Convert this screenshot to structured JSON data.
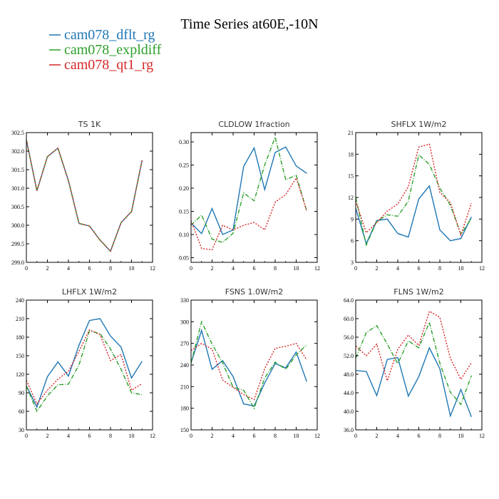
{
  "figure": {
    "title": "Time Series at60E,-10N",
    "legend": [
      {
        "label": "cam078_dflt_rg",
        "color": "#1f77b4",
        "dash": "solid"
      },
      {
        "label": "cam078_expldiff",
        "color": "#2ca02c",
        "dash": "dashdot"
      },
      {
        "label": "cam078_qt1_rg",
        "color": "#d62728",
        "dash": "dotted"
      }
    ]
  },
  "chart_data": [
    {
      "type": "line",
      "title": "TS   1K",
      "x": [
        0,
        1,
        2,
        3,
        4,
        5,
        6,
        7,
        8,
        9,
        10,
        11
      ],
      "xlim": [
        0,
        12
      ],
      "xticks": [
        0,
        2,
        4,
        6,
        8,
        10,
        12
      ],
      "ylim": [
        299.0,
        302.5
      ],
      "yticks": [
        "299.0",
        "299.5",
        "300.0",
        "300.5",
        "301.0",
        "301.5",
        "302.0",
        "302.5"
      ],
      "series": [
        {
          "label": "cam078_dflt_rg",
          "color": "#1f77b4",
          "dash": "solid",
          "values": [
            302.3,
            300.93,
            301.85,
            302.08,
            301.2,
            300.05,
            299.98,
            299.6,
            299.3,
            300.07,
            300.37,
            301.75
          ]
        },
        {
          "label": "cam078_expldiff",
          "color": "#2ca02c",
          "dash": "dashdot",
          "values": [
            302.3,
            300.93,
            301.85,
            302.08,
            301.2,
            300.05,
            299.98,
            299.6,
            299.3,
            300.07,
            300.37,
            301.75
          ]
        },
        {
          "label": "cam078_qt1_rg",
          "color": "#d62728",
          "dash": "dotted",
          "values": [
            302.3,
            300.93,
            301.85,
            302.08,
            301.2,
            300.05,
            299.98,
            299.6,
            299.3,
            300.07,
            300.37,
            301.75
          ]
        }
      ]
    },
    {
      "type": "line",
      "title": "CLDLOW   1fraction",
      "x": [
        0,
        1,
        2,
        3,
        4,
        5,
        6,
        7,
        8,
        9,
        10,
        11
      ],
      "xlim": [
        0,
        12
      ],
      "xticks": [
        0,
        2,
        4,
        6,
        8,
        10,
        12
      ],
      "ylim": [
        0.04,
        0.32
      ],
      "yticks": [
        "0.05",
        "0.10",
        "0.15",
        "0.20",
        "0.25",
        "0.30"
      ],
      "series": [
        {
          "label": "cam078_dflt_rg",
          "color": "#1f77b4",
          "dash": "solid",
          "values": [
            0.125,
            0.102,
            0.156,
            0.1,
            0.11,
            0.247,
            0.287,
            0.197,
            0.277,
            0.289,
            0.248,
            0.232
          ]
        },
        {
          "label": "cam078_expldiff",
          "color": "#2ca02c",
          "dash": "dashdot",
          "values": [
            0.12,
            0.142,
            0.09,
            0.083,
            0.103,
            0.19,
            0.173,
            0.25,
            0.31,
            0.218,
            0.228,
            0.151
          ]
        },
        {
          "label": "cam078_qt1_rg",
          "color": "#d62728",
          "dash": "dotted",
          "values": [
            0.13,
            0.07,
            0.067,
            0.12,
            0.11,
            0.12,
            0.126,
            0.11,
            0.17,
            0.186,
            0.222,
            0.151
          ]
        }
      ]
    },
    {
      "type": "line",
      "title": "SHFLX   1W/m2",
      "x": [
        0,
        1,
        2,
        3,
        4,
        5,
        6,
        7,
        8,
        9,
        10,
        11
      ],
      "xlim": [
        0,
        12
      ],
      "xticks": [
        0,
        2,
        4,
        6,
        8,
        10,
        12
      ],
      "ylim": [
        3,
        21
      ],
      "yticks": [
        "3",
        "6",
        "9",
        "12",
        "15",
        "18",
        "21"
      ],
      "series": [
        {
          "label": "cam078_dflt_rg",
          "color": "#1f77b4",
          "dash": "solid",
          "values": [
            10.5,
            5.6,
            8.8,
            9.0,
            7.0,
            6.5,
            11.8,
            13.6,
            7.5,
            6.0,
            6.3,
            9.3
          ]
        },
        {
          "label": "cam078_expldiff",
          "color": "#2ca02c",
          "dash": "dashdot",
          "values": [
            12.0,
            5.4,
            8.7,
            9.6,
            9.4,
            11.5,
            17.9,
            16.6,
            13.3,
            10.9,
            6.9,
            9.1
          ]
        },
        {
          "label": "cam078_qt1_rg",
          "color": "#d62728",
          "dash": "dotted",
          "values": [
            11.5,
            7.1,
            8.5,
            10.1,
            11.1,
            13.5,
            19.0,
            19.4,
            12.7,
            11.3,
            6.8,
            11.2
          ]
        }
      ]
    },
    {
      "type": "line",
      "title": "LHFLX   1W/m2",
      "x": [
        0,
        1,
        2,
        3,
        4,
        5,
        6,
        7,
        8,
        9,
        10,
        11
      ],
      "xlim": [
        0,
        12
      ],
      "xticks": [
        0,
        2,
        4,
        6,
        8,
        10,
        12
      ],
      "ylim": [
        30,
        240
      ],
      "yticks": [
        "30",
        "60",
        "90",
        "120",
        "150",
        "180",
        "210",
        "240"
      ],
      "series": [
        {
          "label": "cam078_dflt_rg",
          "color": "#1f77b4",
          "dash": "solid",
          "values": [
            101,
            67,
            116,
            140,
            117,
            167,
            207,
            210,
            182,
            164,
            114,
            141
          ]
        },
        {
          "label": "cam078_expldiff",
          "color": "#2ca02c",
          "dash": "dashdot",
          "values": [
            101,
            60,
            85,
            103,
            104,
            135,
            190,
            186,
            161,
            128,
            90,
            87
          ]
        },
        {
          "label": "cam078_qt1_rg",
          "color": "#d62728",
          "dash": "dotted",
          "values": [
            110,
            72,
            94,
            112,
            125,
            157,
            192,
            184,
            142,
            152,
            94,
            105
          ]
        }
      ]
    },
    {
      "type": "line",
      "title": "FSNS   1.0W/m2",
      "x": [
        0,
        1,
        2,
        3,
        4,
        5,
        6,
        7,
        8,
        9,
        10,
        11
      ],
      "xlim": [
        0,
        12
      ],
      "xticks": [
        0,
        2,
        4,
        6,
        8,
        10,
        12
      ],
      "ylim": [
        150,
        330
      ],
      "yticks": [
        "150",
        "180",
        "210",
        "240",
        "270",
        "300",
        "330"
      ],
      "series": [
        {
          "label": "cam078_dflt_rg",
          "color": "#1f77b4",
          "dash": "solid",
          "values": [
            243,
            288,
            234,
            246,
            224,
            186,
            183,
            215,
            242,
            236,
            258,
            217
          ]
        },
        {
          "label": "cam078_expldiff",
          "color": "#2ca02c",
          "dash": "dashdot",
          "values": [
            243,
            300,
            269,
            243,
            209,
            205,
            180,
            222,
            244,
            234,
            254,
            268
          ]
        },
        {
          "label": "cam078_qt1_rg",
          "color": "#d62728",
          "dash": "dotted",
          "values": [
            260,
            270,
            262,
            219,
            209,
            199,
            192,
            235,
            263,
            266,
            270,
            247
          ]
        }
      ]
    },
    {
      "type": "line",
      "title": "FLNS   1W/m2",
      "x": [
        0,
        1,
        2,
        3,
        4,
        5,
        6,
        7,
        8,
        9,
        10,
        11
      ],
      "xlim": [
        0,
        12
      ],
      "xticks": [
        0,
        2,
        4,
        6,
        8,
        10,
        12
      ],
      "ylim": [
        36,
        64
      ],
      "yticks": [
        "36.0",
        "40.0",
        "44.0",
        "48.0",
        "52.0",
        "56.0",
        "60.0",
        "64.0"
      ],
      "series": [
        {
          "label": "cam078_dflt_rg",
          "color": "#1f77b4",
          "dash": "solid",
          "values": [
            48.8,
            48.6,
            43.4,
            51.2,
            51.6,
            43.3,
            47.5,
            53.7,
            49.2,
            39.0,
            44.7,
            38.8
          ]
        },
        {
          "label": "cam078_expldiff",
          "color": "#2ca02c",
          "dash": "dashdot",
          "values": [
            51.5,
            57.0,
            58.5,
            54.5,
            50.3,
            55.2,
            53.7,
            59.2,
            50.4,
            44.1,
            41.5,
            47.7
          ]
        },
        {
          "label": "cam078_qt1_rg",
          "color": "#d62728",
          "dash": "dotted",
          "values": [
            54.1,
            52.0,
            54.5,
            46.6,
            53.4,
            56.5,
            54.2,
            61.6,
            60.3,
            51.4,
            46.9,
            50.5
          ]
        }
      ]
    }
  ]
}
